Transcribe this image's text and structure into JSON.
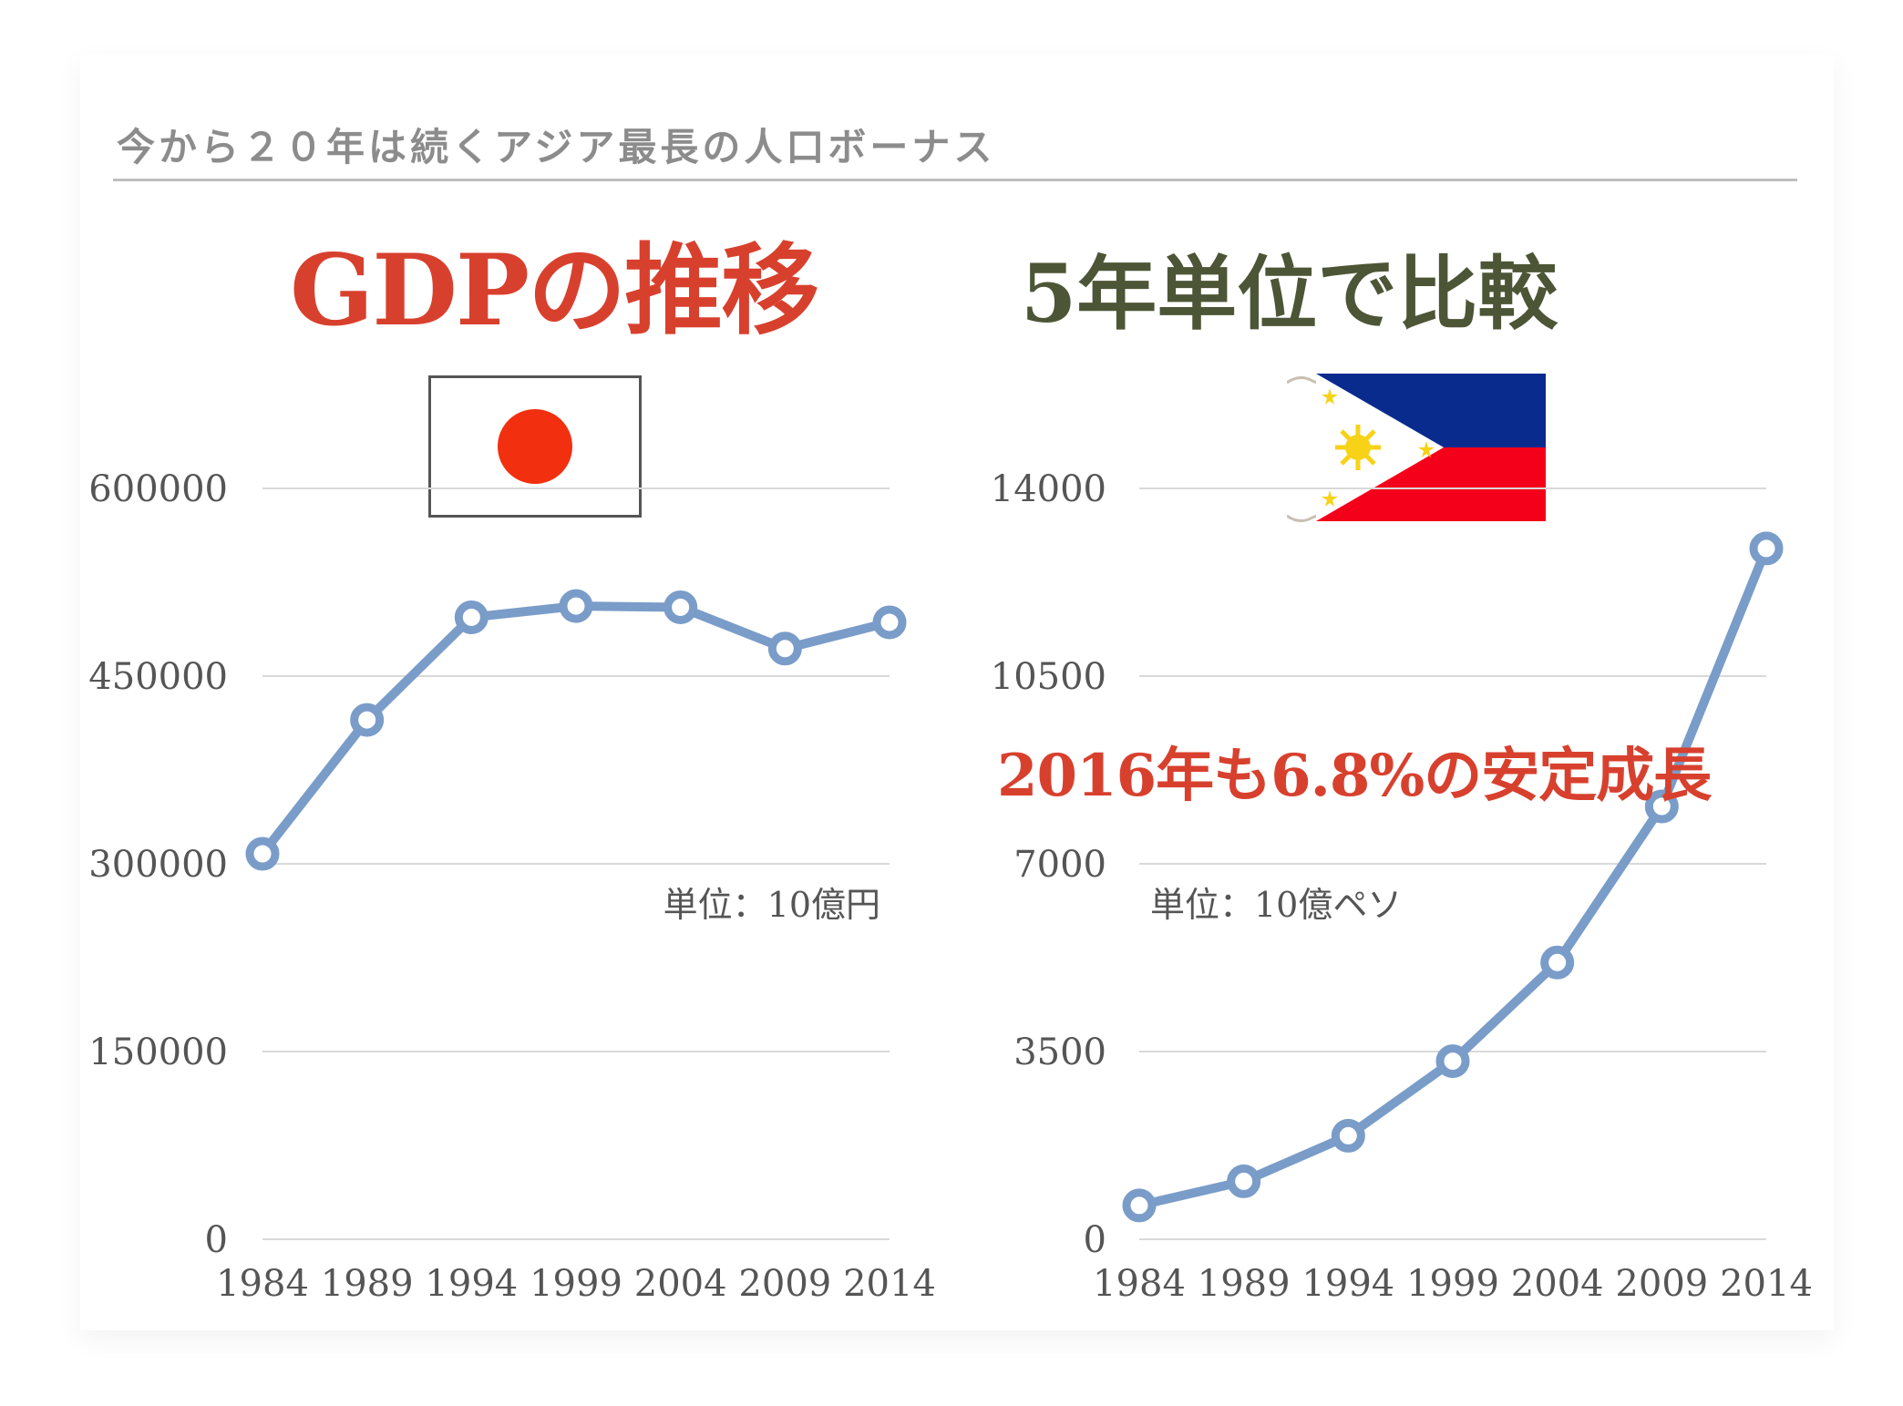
{
  "slide": {
    "subtitle": "今から２０年は続くアジア最長の人口ボーナス",
    "heading_main": "GDPの推移",
    "heading_sub": "5年単位で比較",
    "callout": "2016年も6.8%の安定成長"
  },
  "colors": {
    "line": "#7a9cc8",
    "grid": "#d9d9d9",
    "heading_red": "#d8402e",
    "heading_green": "#4c5535",
    "japan_red": "#f2300f",
    "ph_blue": "#0a2b8e",
    "ph_red": "#f4001b",
    "ph_yellow": "#f7d217"
  },
  "flags": {
    "japan": "japan-flag",
    "philippines": "philippines-flag"
  },
  "chart_data": [
    {
      "type": "line",
      "id": "japan",
      "unit_label": "単位：10億円",
      "x": [
        "1984",
        "1989",
        "1994",
        "1999",
        "2004",
        "2009",
        "2014"
      ],
      "series": [
        {
          "values": [
            308000,
            415000,
            497000,
            506000,
            505000,
            472000,
            493000
          ]
        }
      ],
      "yticks": [
        0,
        150000,
        300000,
        450000,
        600000
      ],
      "ylim": [
        0,
        600000
      ],
      "grid": true,
      "legend": false
    },
    {
      "type": "line",
      "id": "philippines",
      "unit_label": "単位：10億ペソ",
      "x": [
        "1984",
        "1989",
        "1994",
        "1999",
        "2004",
        "2009",
        "2014"
      ],
      "series": [
        {
          "values": [
            630,
            1080,
            1930,
            3320,
            5160,
            8070,
            12880
          ]
        }
      ],
      "yticks": [
        0,
        3500,
        7000,
        10500,
        14000
      ],
      "ylim": [
        0,
        14000
      ],
      "grid": true,
      "legend": false
    }
  ]
}
